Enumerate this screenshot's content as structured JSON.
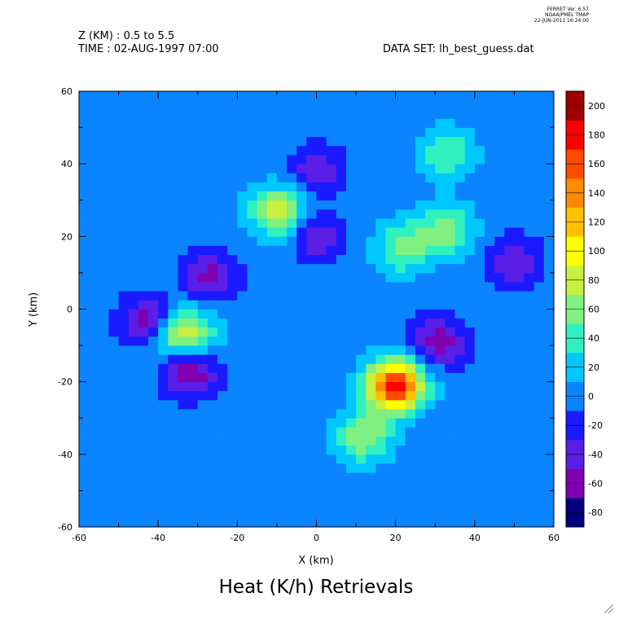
{
  "header": {
    "z_label": "Z (KM) : 0.5 to 5.5",
    "time_label": "TIME : 02-AUG-1997 07:00",
    "dataset_label": "DATA SET: lh_best_guess.dat",
    "version_lines": [
      "FERRET Ver. 6.57",
      "NOAA/PMEL TMAP",
      "22-JUN-2011 16:24:00"
    ]
  },
  "chart_data": {
    "type": "heatmap",
    "title": "Heat (K/h) Retrievals",
    "xlabel": "X (km)",
    "ylabel": "Y (km)",
    "xlim": [
      -60,
      60
    ],
    "ylim": [
      -60,
      60
    ],
    "x_ticks": [
      -60,
      -40,
      -20,
      0,
      20,
      40,
      60
    ],
    "y_ticks": [
      -60,
      -40,
      -20,
      0,
      20,
      40,
      60
    ],
    "colorbar": {
      "levels": [
        -80,
        -60,
        -40,
        -20,
        0,
        20,
        40,
        60,
        80,
        100,
        120,
        140,
        160,
        180,
        200
      ],
      "colors": [
        "#000080",
        "#8000b0",
        "#5a1ee6",
        "#1a1aff",
        "#0a85ff",
        "#00c8ff",
        "#30f0c0",
        "#80f080",
        "#c8f040",
        "#ffff00",
        "#ffc000",
        "#ff8a00",
        "#ff4a00",
        "#ff0000",
        "#a00000"
      ],
      "tick_labels": [
        "-80",
        "-60",
        "-40",
        "-20",
        "0",
        "20",
        "40",
        "60",
        "80",
        "100",
        "120",
        "140",
        "160",
        "180",
        "200"
      ]
    },
    "features": [
      {
        "type": "max",
        "x": 20,
        "y": -21,
        "value": 190
      },
      {
        "type": "max",
        "x": -33,
        "y": -7,
        "value": 100
      },
      {
        "type": "max",
        "x": -10,
        "y": 27,
        "value": 90
      },
      {
        "type": "max",
        "x": 12,
        "y": -35,
        "value": 80
      },
      {
        "type": "max",
        "x": 22,
        "y": 17,
        "value": 70
      },
      {
        "type": "max",
        "x": 33,
        "y": 22,
        "value": 70
      },
      {
        "type": "max",
        "x": 33,
        "y": 43,
        "value": 60
      },
      {
        "type": "min",
        "x": -32,
        "y": -17,
        "value": -70
      },
      {
        "type": "min",
        "x": -43,
        "y": -3,
        "value": -50
      },
      {
        "type": "min",
        "x": -27,
        "y": 9,
        "value": -50
      },
      {
        "type": "min",
        "x": 31,
        "y": -9,
        "value": -55
      },
      {
        "type": "min",
        "x": 0,
        "y": 20,
        "value": -40
      },
      {
        "type": "min",
        "x": 50,
        "y": 13,
        "value": -40
      },
      {
        "type": "min",
        "x": 0,
        "y": 38,
        "value": -40
      }
    ]
  }
}
